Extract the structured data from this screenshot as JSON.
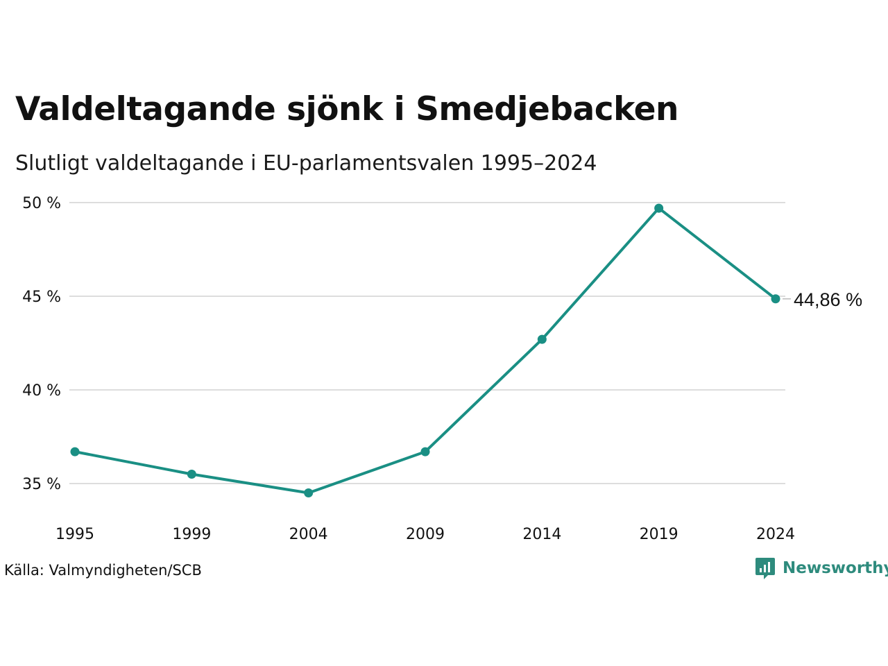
{
  "header": {
    "title": "Valdeltagande sjönk i Smedjebacken",
    "subtitle": "Slutligt valdeltagande i EU-parlamentsvalen 1995–2024"
  },
  "footer": {
    "source": "Källa: Valmyndigheten/SCB",
    "brand_name": "Newsworthy",
    "brand_icon": "newsworthy-logo-icon"
  },
  "colors": {
    "line": "#1a8f84",
    "grid": "#dddddd",
    "brand": "#2e8b7d",
    "text": "#111111"
  },
  "chart_data": {
    "type": "line",
    "title": "Valdeltagande sjönk i Smedjebacken",
    "subtitle": "Slutligt valdeltagande i EU-parlamentsvalen 1995–2024",
    "xlabel": "",
    "ylabel": "",
    "categories": [
      "1995",
      "1999",
      "2004",
      "2009",
      "2014",
      "2019",
      "2024"
    ],
    "series": [
      {
        "values": [
          36.7,
          35.5,
          34.5,
          36.7,
          42.7,
          49.7,
          44.86
        ]
      }
    ],
    "ylim": [
      33,
      50
    ],
    "yticks": [
      35,
      40,
      45,
      50
    ],
    "ytick_labels": [
      "35 %",
      "40 %",
      "45 %",
      "50 %"
    ],
    "grid": true,
    "end_label": "44,86 %"
  }
}
